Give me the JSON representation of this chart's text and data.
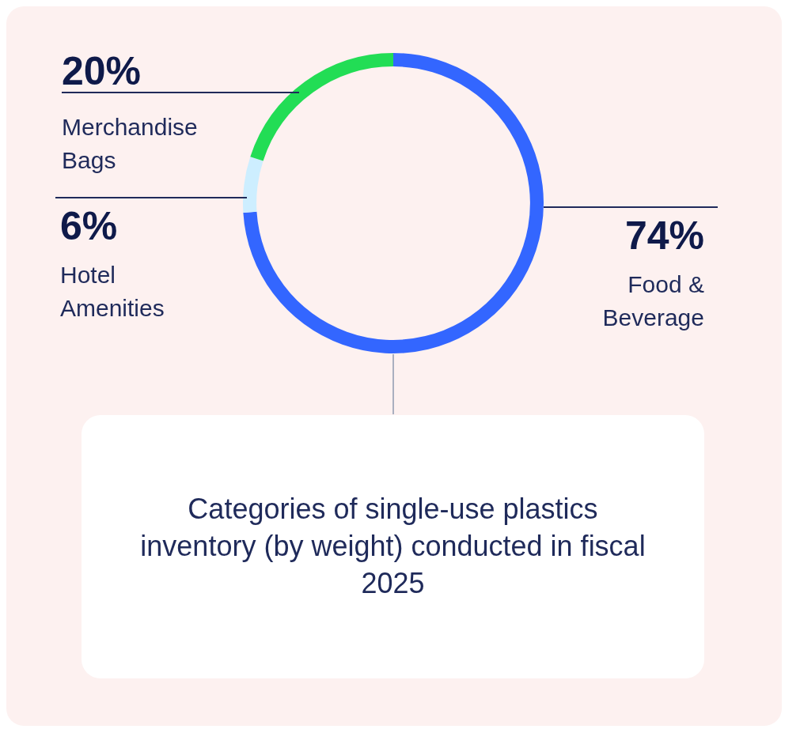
{
  "chart_data": {
    "type": "donut",
    "title": "Categories of single-use plastics inventory (by weight) conducted in fiscal 2025",
    "categories": [
      "Food & Beverage",
      "Hotel Amenities",
      "Merchandise Bags"
    ],
    "values": [
      74,
      6,
      20
    ],
    "colors": [
      "#3366ff",
      "#cdeeff",
      "#22dd55"
    ],
    "value_labels": [
      "74%",
      "6%",
      "20%"
    ],
    "legend": false
  }
}
